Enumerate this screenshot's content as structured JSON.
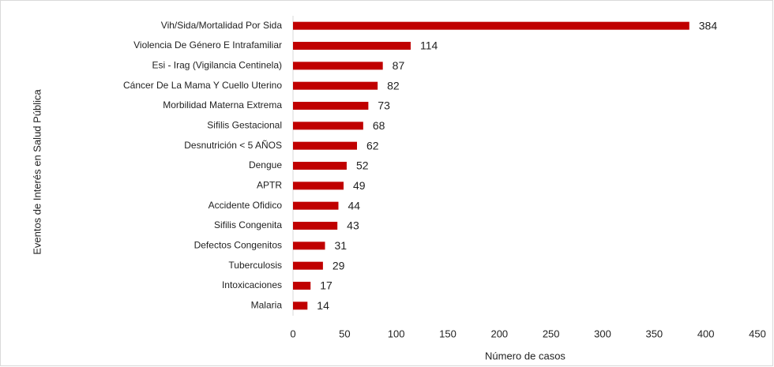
{
  "chart_data": {
    "type": "bar",
    "orientation": "horizontal",
    "categories": [
      "Vih/Sida/Mortalidad Por Sida",
      "Violencia De Género E Intrafamiliar",
      "Esi - Irag (Vigilancia Centinela)",
      "Cáncer De La Mama Y Cuello Uterino",
      "Morbilidad Materna Extrema",
      "Sifilis Gestacional",
      "Desnutrición < 5 AÑOS",
      "Dengue",
      "APTR",
      "Accidente Ofidico",
      "Sifilis Congenita",
      "Defectos Congenitos",
      "Tuberculosis",
      "Intoxicaciones",
      "Malaria"
    ],
    "values": [
      384,
      114,
      87,
      82,
      73,
      68,
      62,
      52,
      49,
      44,
      43,
      31,
      29,
      17,
      14
    ],
    "color": "#c00000",
    "xlim": [
      0,
      450
    ],
    "xticks": [
      0,
      50,
      100,
      150,
      200,
      250,
      300,
      350,
      400,
      450
    ],
    "xlabel": "Número de casos",
    "ylabel": "Eventos de Interés en Salud Pública"
  }
}
